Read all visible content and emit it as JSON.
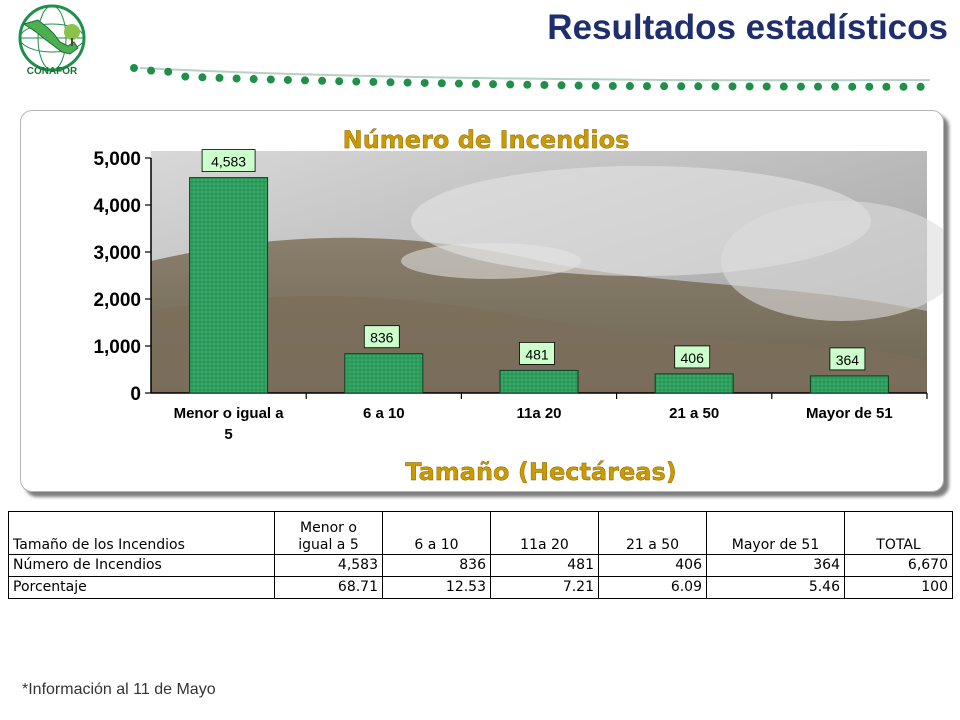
{
  "header": {
    "title": "Resultados estadísticos",
    "logo_text": "CONAFOR",
    "colors": {
      "title": "#1f2f6e",
      "dots": "#1f8f4a"
    }
  },
  "chart_data": {
    "type": "bar",
    "title": "Número de Incendios",
    "xlabel": "Tamaño (Hectáreas)",
    "ylabel": "",
    "categories": [
      "Menor o igual a 5",
      "6 a 10",
      "11a 20",
      "21 a 50",
      "Mayor de 51"
    ],
    "values": [
      4583,
      836,
      481,
      406,
      364
    ],
    "value_labels": [
      "4,583",
      "836",
      "481",
      "406",
      "364"
    ],
    "yticks": [
      0,
      1000,
      2000,
      3000,
      4000,
      5000
    ],
    "ytick_labels": [
      "0",
      "1,000",
      "2,000",
      "3,000",
      "4,000",
      "5,000"
    ],
    "ylim": [
      0,
      5000
    ],
    "grid": false,
    "legend": "none",
    "colors": {
      "bar": "#2e9e5e",
      "bar_edge": "#0c3d20",
      "label_bg": "#ccffcc",
      "title": "#cc9900"
    }
  },
  "table": {
    "header_row": [
      "Tamaño de los Incendios",
      "Menor o igual a 5",
      "6 a 10",
      "11a 20",
      "21 a 50",
      "Mayor de 51",
      "TOTAL"
    ],
    "rows": [
      {
        "label": "Número de Incendios",
        "values": [
          "4,583",
          "836",
          "481",
          "406",
          "364",
          "6,670"
        ]
      },
      {
        "label": "Porcentaje",
        "values": [
          "68.71",
          "12.53",
          "7.21",
          "6.09",
          "5.46",
          "100"
        ]
      }
    ]
  },
  "footnote": "*Información al 11 de Mayo"
}
